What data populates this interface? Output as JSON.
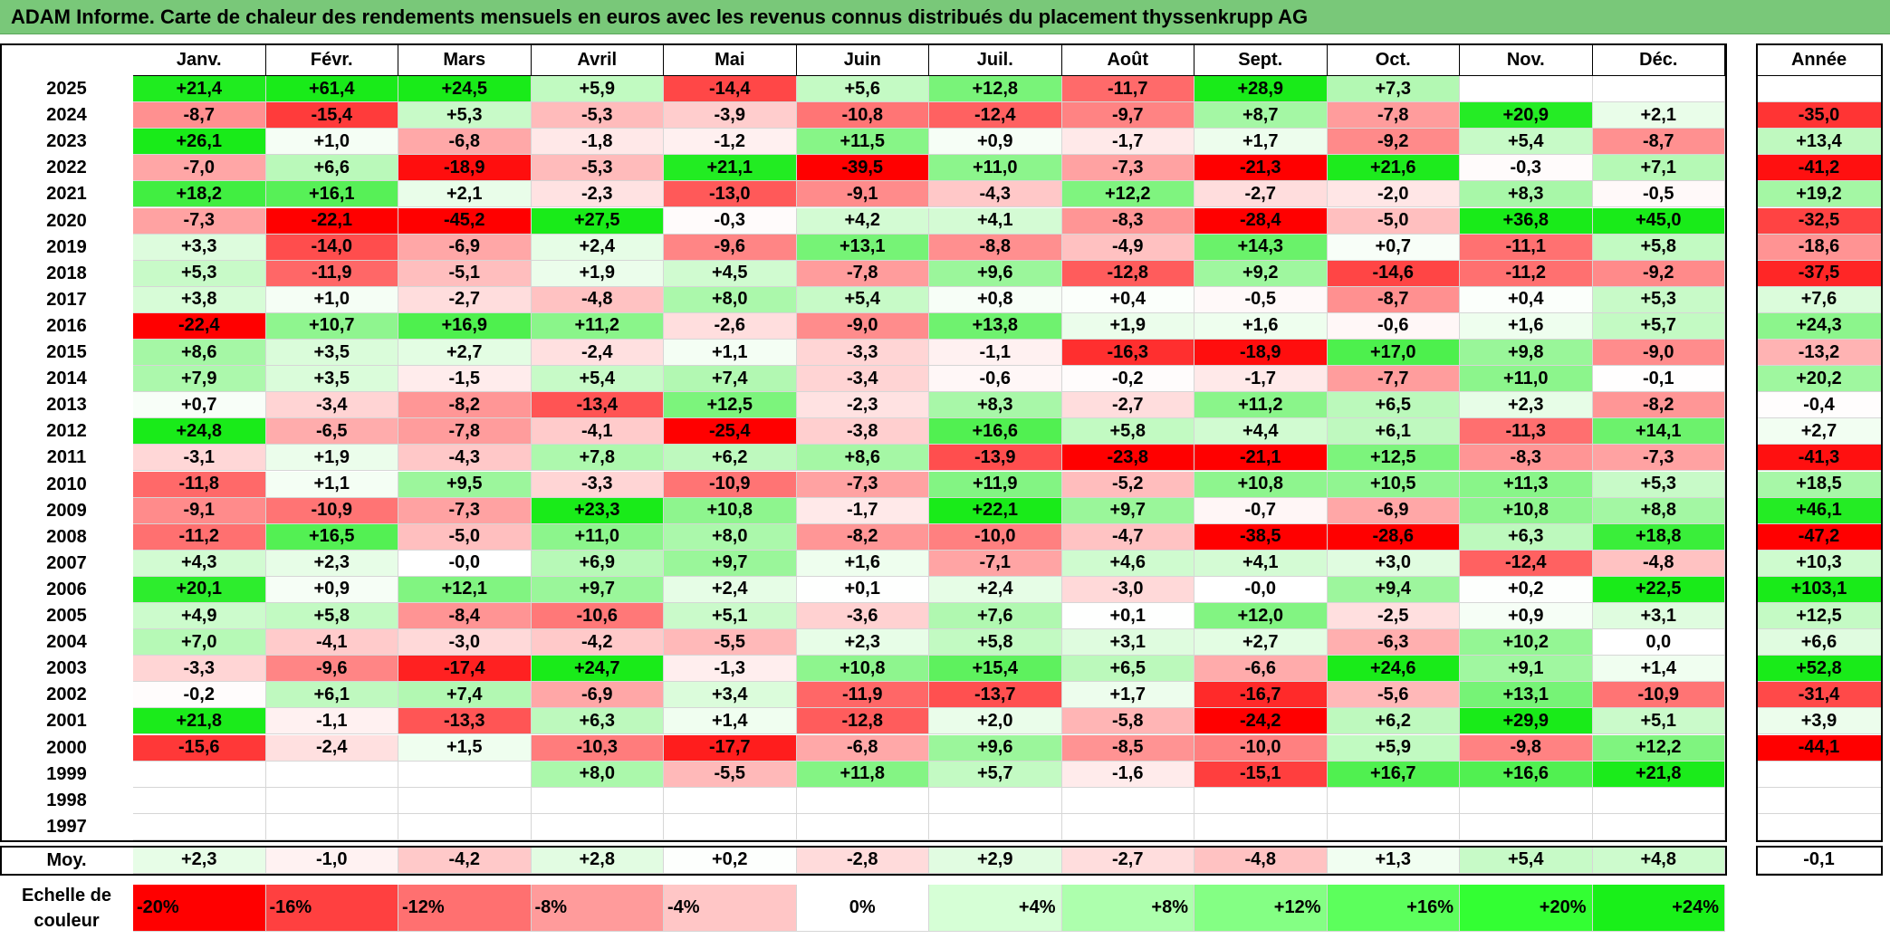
{
  "title": "ADAM Informe. Carte de chaleur des rendements mensuels en euros avec les revenus connus distribués du placement thyssenkrupp AG",
  "months": [
    "Janv.",
    "Févr.",
    "Mars",
    "Avril",
    "Mai",
    "Juin",
    "Juil.",
    "Août",
    "Sept.",
    "Oct.",
    "Nov.",
    "Déc."
  ],
  "year_header": "Année",
  "avg_label": "Moy.",
  "scale_label": "Echelle de couleur",
  "chart_data": {
    "type": "heatmap",
    "title": "ADAM Informe. Carte de chaleur des rendements mensuels en euros avec les revenus connus distribués du placement thyssenkrupp AG",
    "columns": [
      "Janv.",
      "Févr.",
      "Mars",
      "Avril",
      "Mai",
      "Juin",
      "Juil.",
      "Août",
      "Sept.",
      "Oct.",
      "Nov.",
      "Déc."
    ],
    "rows": [
      {
        "year": "2025",
        "values": [
          "+21,4",
          "+61,4",
          "+24,5",
          "+5,9",
          "-14,4",
          "+5,6",
          "+12,8",
          "-11,7",
          "+28,9",
          "+7,3",
          "",
          ""
        ],
        "annual": ""
      },
      {
        "year": "2024",
        "values": [
          "-8,7",
          "-15,4",
          "+5,3",
          "-5,3",
          "-3,9",
          "-10,8",
          "-12,4",
          "-9,7",
          "+8,7",
          "-7,8",
          "+20,9",
          "+2,1"
        ],
        "annual": "-35,0"
      },
      {
        "year": "2023",
        "values": [
          "+26,1",
          "+1,0",
          "-6,8",
          "-1,8",
          "-1,2",
          "+11,5",
          "+0,9",
          "-1,7",
          "+1,7",
          "-9,2",
          "+5,4",
          "-8,7"
        ],
        "annual": "+13,4"
      },
      {
        "year": "2022",
        "values": [
          "-7,0",
          "+6,6",
          "-18,9",
          "-5,3",
          "+21,1",
          "-39,5",
          "+11,0",
          "-7,3",
          "-21,3",
          "+21,6",
          "-0,3",
          "+7,1"
        ],
        "annual": "-41,2"
      },
      {
        "year": "2021",
        "values": [
          "+18,2",
          "+16,1",
          "+2,1",
          "-2,3",
          "-13,0",
          "-9,1",
          "-4,3",
          "+12,2",
          "-2,7",
          "-2,0",
          "+8,3",
          "-0,5"
        ],
        "annual": "+19,2"
      },
      {
        "year": "2020",
        "values": [
          "-7,3",
          "-22,1",
          "-45,2",
          "+27,5",
          "-0,3",
          "+4,2",
          "+4,1",
          "-8,3",
          "-28,4",
          "-5,0",
          "+36,8",
          "+45,0"
        ],
        "annual": "-32,5"
      },
      {
        "year": "2019",
        "values": [
          "+3,3",
          "-14,0",
          "-6,9",
          "+2,4",
          "-9,6",
          "+13,1",
          "-8,8",
          "-4,9",
          "+14,3",
          "+0,7",
          "-11,1",
          "+5,8"
        ],
        "annual": "-18,6"
      },
      {
        "year": "2018",
        "values": [
          "+5,3",
          "-11,9",
          "-5,1",
          "+1,9",
          "+4,5",
          "-7,8",
          "+9,6",
          "-12,8",
          "+9,2",
          "-14,6",
          "-11,2",
          "-9,2"
        ],
        "annual": "-37,5"
      },
      {
        "year": "2017",
        "values": [
          "+3,8",
          "+1,0",
          "-2,7",
          "-4,8",
          "+8,0",
          "+5,4",
          "+0,8",
          "+0,4",
          "-0,5",
          "-8,7",
          "+0,4",
          "+5,3"
        ],
        "annual": "+7,6"
      },
      {
        "year": "2016",
        "values": [
          "-22,4",
          "+10,7",
          "+16,9",
          "+11,2",
          "-2,6",
          "-9,0",
          "+13,8",
          "+1,9",
          "+1,6",
          "-0,6",
          "+1,6",
          "+5,7"
        ],
        "annual": "+24,3"
      },
      {
        "year": "2015",
        "values": [
          "+8,6",
          "+3,5",
          "+2,7",
          "-2,4",
          "+1,1",
          "-3,3",
          "-1,1",
          "-16,3",
          "-18,9",
          "+17,0",
          "+9,8",
          "-9,0"
        ],
        "annual": "-13,2"
      },
      {
        "year": "2014",
        "values": [
          "+7,9",
          "+3,5",
          "-1,5",
          "+5,4",
          "+7,4",
          "-3,4",
          "-0,6",
          "-0,2",
          "-1,7",
          "-7,7",
          "+11,0",
          "-0,1"
        ],
        "annual": "+20,2"
      },
      {
        "year": "2013",
        "values": [
          "+0,7",
          "-3,4",
          "-8,2",
          "-13,4",
          "+12,5",
          "-2,3",
          "+8,3",
          "-2,7",
          "+11,2",
          "+6,5",
          "+2,3",
          "-8,2"
        ],
        "annual": "-0,4"
      },
      {
        "year": "2012",
        "values": [
          "+24,8",
          "-6,5",
          "-7,8",
          "-4,1",
          "-25,4",
          "-3,8",
          "+16,6",
          "+5,8",
          "+4,4",
          "+6,1",
          "-11,3",
          "+14,1"
        ],
        "annual": "+2,7"
      },
      {
        "year": "2011",
        "values": [
          "-3,1",
          "+1,9",
          "-4,3",
          "+7,8",
          "+6,2",
          "+8,6",
          "-13,9",
          "-23,8",
          "-21,1",
          "+12,5",
          "-8,3",
          "-7,3"
        ],
        "annual": "-41,3"
      },
      {
        "year": "2010",
        "values": [
          "-11,8",
          "+1,1",
          "+9,5",
          "-3,3",
          "-10,9",
          "-7,3",
          "+11,9",
          "-5,2",
          "+10,8",
          "+10,5",
          "+11,3",
          "+5,3"
        ],
        "annual": "+18,5"
      },
      {
        "year": "2009",
        "values": [
          "-9,1",
          "-10,9",
          "-7,3",
          "+23,3",
          "+10,8",
          "-1,7",
          "+22,1",
          "+9,7",
          "-0,7",
          "-6,9",
          "+10,8",
          "+8,8"
        ],
        "annual": "+46,1"
      },
      {
        "year": "2008",
        "values": [
          "-11,2",
          "+16,5",
          "-5,0",
          "+11,0",
          "+8,0",
          "-8,2",
          "-10,0",
          "-4,7",
          "-38,5",
          "-28,6",
          "+6,3",
          "+18,8"
        ],
        "annual": "-47,2"
      },
      {
        "year": "2007",
        "values": [
          "+4,3",
          "+2,3",
          "-0,0",
          "+6,9",
          "+9,7",
          "+1,6",
          "-7,1",
          "+4,6",
          "+4,1",
          "+3,0",
          "-12,4",
          "-4,8"
        ],
        "annual": "+10,3"
      },
      {
        "year": "2006",
        "values": [
          "+20,1",
          "+0,9",
          "+12,1",
          "+9,7",
          "+2,4",
          "+0,1",
          "+2,4",
          "-3,0",
          "-0,0",
          "+9,4",
          "+0,2",
          "+22,5"
        ],
        "annual": "+103,1"
      },
      {
        "year": "2005",
        "values": [
          "+4,9",
          "+5,8",
          "-8,4",
          "-10,6",
          "+5,1",
          "-3,6",
          "+7,6",
          "+0,1",
          "+12,0",
          "-2,5",
          "+0,9",
          "+3,1"
        ],
        "annual": "+12,5"
      },
      {
        "year": "2004",
        "values": [
          "+7,0",
          "-4,1",
          "-3,0",
          "-4,2",
          "-5,5",
          "+2,3",
          "+5,8",
          "+3,1",
          "+2,7",
          "-6,3",
          "+10,2",
          "0,0"
        ],
        "annual": "+6,6"
      },
      {
        "year": "2003",
        "values": [
          "-3,3",
          "-9,6",
          "-17,4",
          "+24,7",
          "-1,3",
          "+10,8",
          "+15,4",
          "+6,5",
          "-6,6",
          "+24,6",
          "+9,1",
          "+1,4"
        ],
        "annual": "+52,8"
      },
      {
        "year": "2002",
        "values": [
          "-0,2",
          "+6,1",
          "+7,4",
          "-6,9",
          "+3,4",
          "-11,9",
          "-13,7",
          "+1,7",
          "-16,7",
          "-5,6",
          "+13,1",
          "-10,9"
        ],
        "annual": "-31,4"
      },
      {
        "year": "2001",
        "values": [
          "+21,8",
          "-1,1",
          "-13,3",
          "+6,3",
          "+1,4",
          "-12,8",
          "+2,0",
          "-5,8",
          "-24,2",
          "+6,2",
          "+29,9",
          "+5,1"
        ],
        "annual": "+3,9"
      },
      {
        "year": "2000",
        "values": [
          "-15,6",
          "-2,4",
          "+1,5",
          "-10,3",
          "-17,7",
          "-6,8",
          "+9,6",
          "-8,5",
          "-10,0",
          "+5,9",
          "-9,8",
          "+12,2"
        ],
        "annual": "-44,1"
      },
      {
        "year": "1999",
        "values": [
          "",
          "",
          "",
          "+8,0",
          "-5,5",
          "+11,8",
          "+5,7",
          "-1,6",
          "-15,1",
          "+16,7",
          "+16,6",
          "+21,8"
        ],
        "annual": ""
      },
      {
        "year": "1998",
        "values": [
          "",
          "",
          "",
          "",
          "",
          "",
          "",
          "",
          "",
          "",
          "",
          ""
        ],
        "annual": ""
      },
      {
        "year": "1997",
        "values": [
          "",
          "",
          "",
          "",
          "",
          "",
          "",
          "",
          "",
          "",
          "",
          ""
        ],
        "annual": ""
      }
    ],
    "averages": [
      "+2,3",
      "-1,0",
      "-4,2",
      "+2,8",
      "+0,2",
      "-2,8",
      "+2,9",
      "-2,7",
      "-4,8",
      "+1,3",
      "+5,4",
      "+4,8"
    ],
    "average_annual": "-0,1",
    "color_scale": {
      "labels": [
        "-20%",
        "-16%",
        "-12%",
        "-8%",
        "-4%",
        "0%",
        "+4%",
        "+8%",
        "+12%",
        "+16%",
        "+20%",
        "+24%"
      ],
      "colors": [
        "#ff0000",
        "#ff4040",
        "#ff7070",
        "#ff9b9b",
        "#ffc6c6",
        "#ffffff",
        "#d6ffd6",
        "#adffad",
        "#84ff84",
        "#5cff5c",
        "#33ff33",
        "#19f019"
      ]
    }
  }
}
